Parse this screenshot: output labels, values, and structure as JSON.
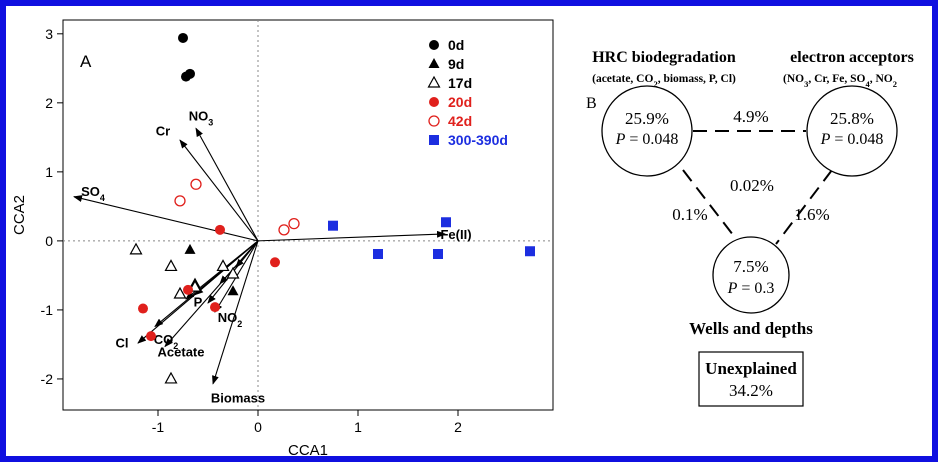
{
  "chart_data": {
    "type": "scatter",
    "panel_label": "A",
    "xlabel": "CCA1",
    "ylabel": "CCA2",
    "xlim": [
      -1.95,
      2.95
    ],
    "ylim": [
      -2.45,
      3.2
    ],
    "xticks": [
      -1,
      0,
      1,
      2
    ],
    "yticks": [
      -2,
      -1,
      0,
      1,
      2,
      3
    ],
    "reference_lines": {
      "x": 0,
      "y": 0,
      "style": "dotted"
    },
    "series": [
      {
        "name": "0d",
        "marker": "circle",
        "filled": true,
        "color": "#000000",
        "points": [
          [
            -0.75,
            2.94
          ],
          [
            -0.72,
            2.38
          ],
          [
            -0.68,
            2.42
          ]
        ]
      },
      {
        "name": "9d",
        "marker": "triangle",
        "filled": true,
        "color": "#000000",
        "points": [
          [
            -0.68,
            -0.13
          ],
          [
            -0.63,
            -0.62
          ],
          [
            -0.25,
            -0.73
          ]
        ]
      },
      {
        "name": "17d",
        "marker": "triangle",
        "filled": false,
        "color": "#000000",
        "points": [
          [
            -1.22,
            -0.13
          ],
          [
            -0.87,
            -0.37
          ],
          [
            -0.35,
            -0.37
          ],
          [
            -0.25,
            -0.48
          ],
          [
            -0.78,
            -0.77
          ],
          [
            -0.63,
            -0.67
          ],
          [
            -0.87,
            -2.0
          ]
        ]
      },
      {
        "name": "20d",
        "marker": "circle",
        "filled": true,
        "color": "#e0201c",
        "points": [
          [
            -0.38,
            0.16
          ],
          [
            -1.15,
            -0.98
          ],
          [
            -1.07,
            -1.38
          ],
          [
            -0.7,
            -0.71
          ],
          [
            -0.43,
            -0.96
          ],
          [
            0.17,
            -0.31
          ]
        ]
      },
      {
        "name": "42d",
        "marker": "circle",
        "filled": false,
        "color": "#e0201c",
        "points": [
          [
            -0.62,
            0.82
          ],
          [
            -0.78,
            0.58
          ],
          [
            0.26,
            0.16
          ],
          [
            0.36,
            0.25
          ]
        ]
      },
      {
        "name": "300-390d",
        "marker": "square",
        "filled": true,
        "color": "#1c2ee0",
        "points": [
          [
            0.75,
            0.22
          ],
          [
            1.2,
            -0.19
          ],
          [
            1.8,
            -0.19
          ],
          [
            1.88,
            0.27
          ],
          [
            2.72,
            -0.15
          ]
        ]
      }
    ],
    "vectors": [
      {
        "label": "NO",
        "sub": "3",
        "end": [
          -0.62,
          1.63
        ],
        "label_pos": [
          -0.57,
          1.82
        ]
      },
      {
        "label": "Cr",
        "sub": "",
        "end": [
          -0.78,
          1.46
        ],
        "label_pos": [
          -0.95,
          1.6
        ]
      },
      {
        "label": "SO",
        "sub": "4",
        "end": [
          -1.84,
          0.64
        ],
        "label_pos": [
          -1.65,
          0.72
        ]
      },
      {
        "label": "Fe(II)",
        "sub": "",
        "end": [
          1.87,
          0.1
        ],
        "label_pos": [
          1.98,
          0.1
        ]
      },
      {
        "label": "P",
        "sub": "",
        "end": [
          -0.63,
          -0.78
        ],
        "label_pos": [
          -0.6,
          -0.88
        ]
      },
      {
        "label": "NO",
        "sub": "2",
        "end": [
          -0.43,
          -1.03
        ],
        "label_pos": [
          -0.28,
          -1.1
        ]
      },
      {
        "label": "CO",
        "sub": "2",
        "end": [
          -1.03,
          -1.24
        ],
        "label_pos": [
          -0.92,
          -1.42
        ]
      },
      {
        "label": "Cl",
        "sub": "",
        "end": [
          -1.2,
          -1.48
        ],
        "label_pos": [
          -1.36,
          -1.47
        ]
      },
      {
        "label": "Acetate",
        "sub": "",
        "end": [
          -0.93,
          -1.53
        ],
        "label_pos": [
          -0.77,
          -1.6
        ]
      },
      {
        "label": "Biomass",
        "sub": "",
        "end": [
          -0.45,
          -2.07
        ],
        "label_pos": [
          -0.2,
          -2.27
        ]
      },
      {
        "end": [
          -0.22,
          -0.38
        ]
      },
      {
        "end": [
          -0.38,
          -0.62
        ]
      },
      {
        "end": [
          -0.72,
          -0.84
        ]
      },
      {
        "end": [
          -0.5,
          -0.9
        ]
      }
    ]
  },
  "diagram": {
    "panel_label": "B",
    "nodes": [
      {
        "id": "hrc",
        "title": "HRC biodegradation",
        "subtitle_parts": [
          "(acetate, CO",
          "2",
          ", biomass, P, Cl)"
        ],
        "percent": "25.9%",
        "p_label": "P",
        "p_value": " = 0.048"
      },
      {
        "id": "ea",
        "title": "electron acceptors",
        "subtitle_parts": [
          "(NO",
          "3",
          ", Cr, Fe, SO",
          "4",
          ", NO",
          "2"
        ],
        "percent": "25.8%",
        "p_label": "P",
        "p_value": " = 0.048"
      },
      {
        "id": "wd",
        "title": "Wells and depths",
        "percent": "7.5%",
        "p_label": "P",
        "p_value": " = 0.3"
      }
    ],
    "shared": {
      "hrc_ea": "4.9%",
      "hrc_wd": "0.1%",
      "ea_wd": "1.6%",
      "all": "0.02%"
    },
    "unexplained": {
      "label": "Unexplained",
      "value": "34.2%"
    }
  },
  "colors": {
    "frame": "#1010e0",
    "red": "#e0201c",
    "blue": "#1c2ee0",
    "black": "#000000"
  }
}
